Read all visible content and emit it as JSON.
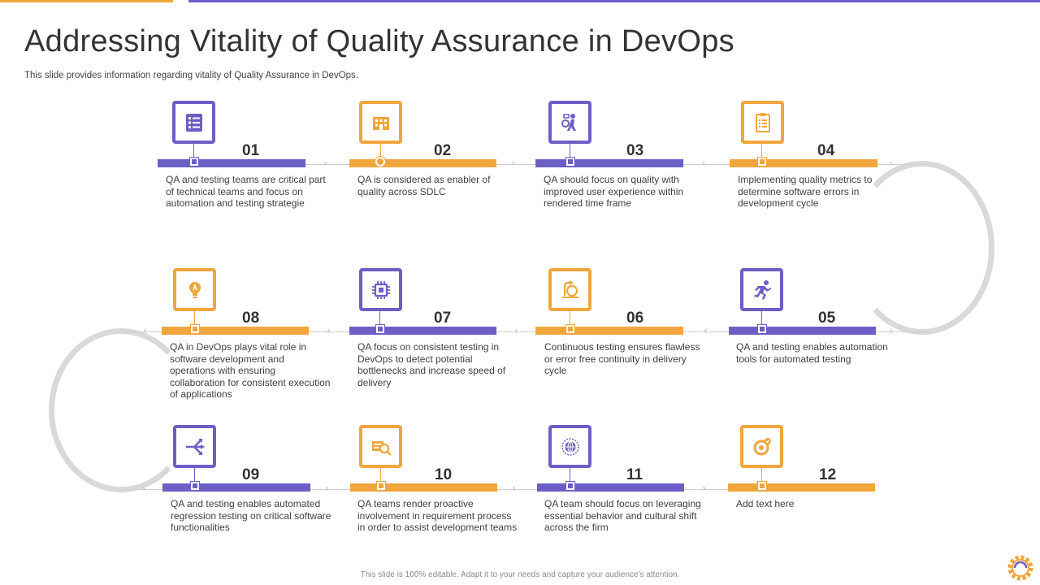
{
  "title": "Addressing Vitality of Quality Assurance in DevOps",
  "subtitle": "This slide provides information regarding vitality of Quality Assurance in DevOps.",
  "footer": "This slide is 100% editable. Adapt it to your needs and capture your audience's attention.",
  "colors": {
    "purple": "#6b5fc6",
    "orange": "#f0a63c",
    "connector": "#d9d9d9"
  },
  "steps": [
    {
      "number": "01",
      "text": "QA  and testing teams are critical part of technical teams and focus on automation and testing strategie",
      "color": "purple",
      "icon": "checklist-icon"
    },
    {
      "number": "02",
      "text": "QA  is considered as enabler of quality across SDLC",
      "color": "orange",
      "icon": "building-icon"
    },
    {
      "number": "03",
      "text": "QA  should focus on quality with improved user experience within rendered time frame",
      "color": "purple",
      "icon": "user-experience-icon"
    },
    {
      "number": "04",
      "text": "Implementing quality metrics to determine software errors in development cycle",
      "color": "orange",
      "icon": "clipboard-icon"
    },
    {
      "number": "05",
      "text": "QA  and testing enables automation tools for automated testing",
      "color": "purple",
      "icon": "runner-icon"
    },
    {
      "number": "06",
      "text": "Continuous testing ensures flawless or error free continuity in delivery cycle",
      "color": "orange",
      "icon": "cycle-icon"
    },
    {
      "number": "07",
      "text": "QA  focus on consistent testing in DevOps to detect potential bottlenecks and increase speed of delivery",
      "color": "purple",
      "icon": "chip-icon"
    },
    {
      "number": "08",
      "text": "QA  in DevOps plays vital role in software development and operations with ensuring collaboration for consistent execution of applications",
      "color": "orange",
      "icon": "lightbulb-icon"
    },
    {
      "number": "09",
      "text": "QA  and testing enables automated regression testing on critical software functionalities",
      "color": "purple",
      "icon": "split-arrows-icon"
    },
    {
      "number": "10",
      "text": "QA  teams render proactive involvement in requirement process in order to assist development teams",
      "color": "orange",
      "icon": "search-money-icon"
    },
    {
      "number": "11",
      "text": "QA  team should focus on leveraging essential behavior and cultural shift across the firm",
      "color": "purple",
      "icon": "globe-icon"
    },
    {
      "number": "12",
      "text": "Add text here",
      "color": "orange",
      "icon": "target-icon"
    }
  ]
}
